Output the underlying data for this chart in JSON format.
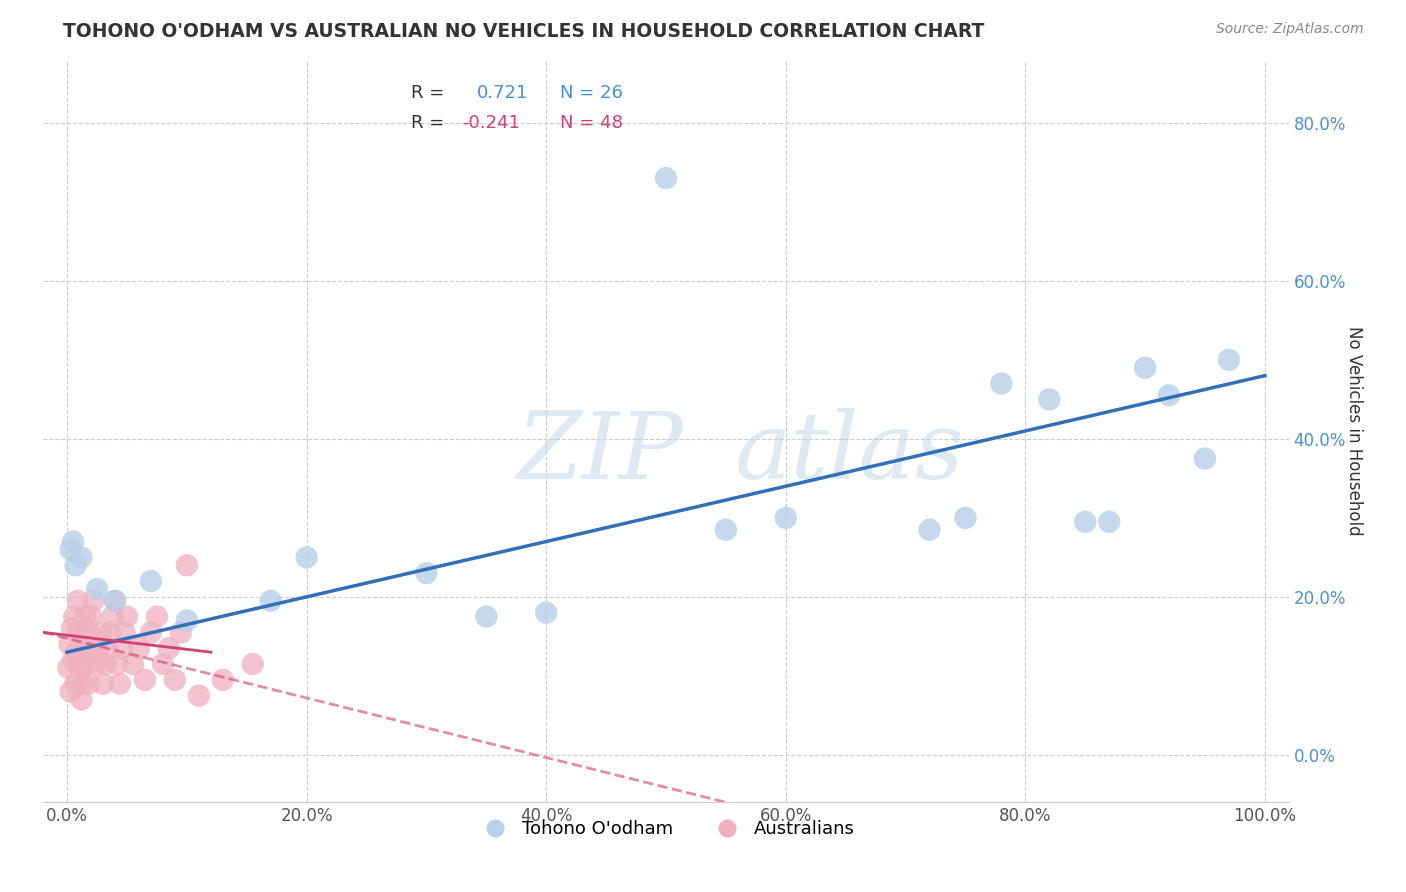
{
  "title": "TOHONO O'ODHAM VS AUSTRALIAN NO VEHICLES IN HOUSEHOLD CORRELATION CHART",
  "source": "Source: ZipAtlas.com",
  "ylabel": "No Vehicles in Household",
  "xlim": [
    -0.02,
    1.02
  ],
  "ylim": [
    -0.06,
    0.88
  ],
  "x_ticks": [
    0.0,
    0.2,
    0.4,
    0.6,
    0.8,
    1.0
  ],
  "x_tick_labels": [
    "0.0%",
    "20.0%",
    "40.0%",
    "60.0%",
    "80.0%",
    "100.0%"
  ],
  "y_ticks": [
    0.0,
    0.2,
    0.4,
    0.6,
    0.8
  ],
  "y_tick_labels": [
    "0.0%",
    "20.0%",
    "40.0%",
    "60.0%",
    "80.0%"
  ],
  "blue_R": 0.721,
  "blue_N": 26,
  "pink_R": -0.241,
  "pink_N": 48,
  "blue_color": "#b8d0e8",
  "blue_line_color": "#3070b8",
  "pink_color": "#f0b0c0",
  "pink_line_color": "#d04070",
  "watermark_zip": "ZIP",
  "watermark_atlas": "atlas",
  "background_color": "#ffffff",
  "grid_color": "#cccccc",
  "blue_trend_x0": 0.0,
  "blue_trend_y0": 0.13,
  "blue_trend_x1": 1.0,
  "blue_trend_y1": 0.48,
  "pink_trend_x0": -0.02,
  "pink_trend_y0": 0.155,
  "pink_trend_x1": 0.55,
  "pink_trend_y1": -0.06,
  "blue_points_x": [
    0.003,
    0.005,
    0.007,
    0.012,
    0.025,
    0.04,
    0.07,
    0.1,
    0.17,
    0.2,
    0.35,
    0.5,
    0.55,
    0.6,
    0.72,
    0.75,
    0.78,
    0.82,
    0.85,
    0.87,
    0.9,
    0.92,
    0.95,
    0.97,
    0.4,
    0.3
  ],
  "blue_points_y": [
    0.26,
    0.27,
    0.24,
    0.25,
    0.21,
    0.195,
    0.22,
    0.17,
    0.195,
    0.25,
    0.175,
    0.73,
    0.285,
    0.3,
    0.285,
    0.3,
    0.47,
    0.45,
    0.295,
    0.295,
    0.49,
    0.455,
    0.375,
    0.5,
    0.18,
    0.23
  ],
  "pink_points_x": [
    0.001,
    0.002,
    0.003,
    0.004,
    0.005,
    0.006,
    0.007,
    0.008,
    0.009,
    0.01,
    0.011,
    0.012,
    0.013,
    0.014,
    0.015,
    0.016,
    0.017,
    0.018,
    0.019,
    0.02,
    0.022,
    0.024,
    0.026,
    0.028,
    0.03,
    0.032,
    0.034,
    0.036,
    0.038,
    0.04,
    0.042,
    0.044,
    0.046,
    0.048,
    0.05,
    0.055,
    0.06,
    0.065,
    0.07,
    0.075,
    0.08,
    0.085,
    0.09,
    0.095,
    0.1,
    0.11,
    0.13,
    0.155
  ],
  "pink_points_y": [
    0.11,
    0.14,
    0.08,
    0.16,
    0.12,
    0.175,
    0.09,
    0.13,
    0.195,
    0.155,
    0.11,
    0.07,
    0.09,
    0.13,
    0.175,
    0.115,
    0.155,
    0.09,
    0.13,
    0.175,
    0.195,
    0.115,
    0.135,
    0.155,
    0.09,
    0.115,
    0.135,
    0.155,
    0.175,
    0.195,
    0.115,
    0.09,
    0.135,
    0.155,
    0.175,
    0.115,
    0.135,
    0.095,
    0.155,
    0.175,
    0.115,
    0.135,
    0.095,
    0.155,
    0.24,
    0.075,
    0.095,
    0.115
  ]
}
